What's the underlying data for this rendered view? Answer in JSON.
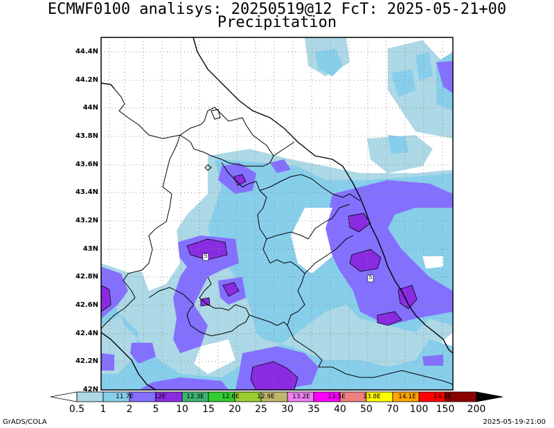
{
  "title": "ECMWF0100 analisys: 20250519@12 FcT: 2025-05-21+00",
  "subtitle": "Precipitation",
  "lat_labels": [
    "44.4N",
    "44.2N",
    "44N",
    "43.8N",
    "43.6N",
    "43.4N",
    "43.2N",
    "43N",
    "42.8N",
    "42.6N",
    "42.4N",
    "42.2N",
    "42N"
  ],
  "lon_labels": [
    "11.7E",
    "12E",
    "12.3E",
    "12.6E",
    "12.9E",
    "13.2E",
    "13.5E",
    "13.8E",
    "14.1E",
    "14.4E"
  ],
  "colorbar_ticks": [
    "0.5",
    "1",
    "2",
    "5",
    "10",
    "15",
    "20",
    "25",
    "30",
    "35",
    "40",
    "50",
    "70",
    "100",
    "150",
    "200"
  ],
  "colorbar_colors": [
    "#add8e6",
    "#87ceeb",
    "#8470ff",
    "#8a2be2",
    "#3cb371",
    "#32cd32",
    "#9acd32",
    "#bdb76b",
    "#ee82ee",
    "#ff00ff",
    "#f08080",
    "#ffff00",
    "#ffa500",
    "#ff0000",
    "#8b0000"
  ],
  "footer_left": "GrADS/COLA",
  "footer_right": "2025-05-19-21:00",
  "cell_labels": [
    "5",
    "5"
  ]
}
